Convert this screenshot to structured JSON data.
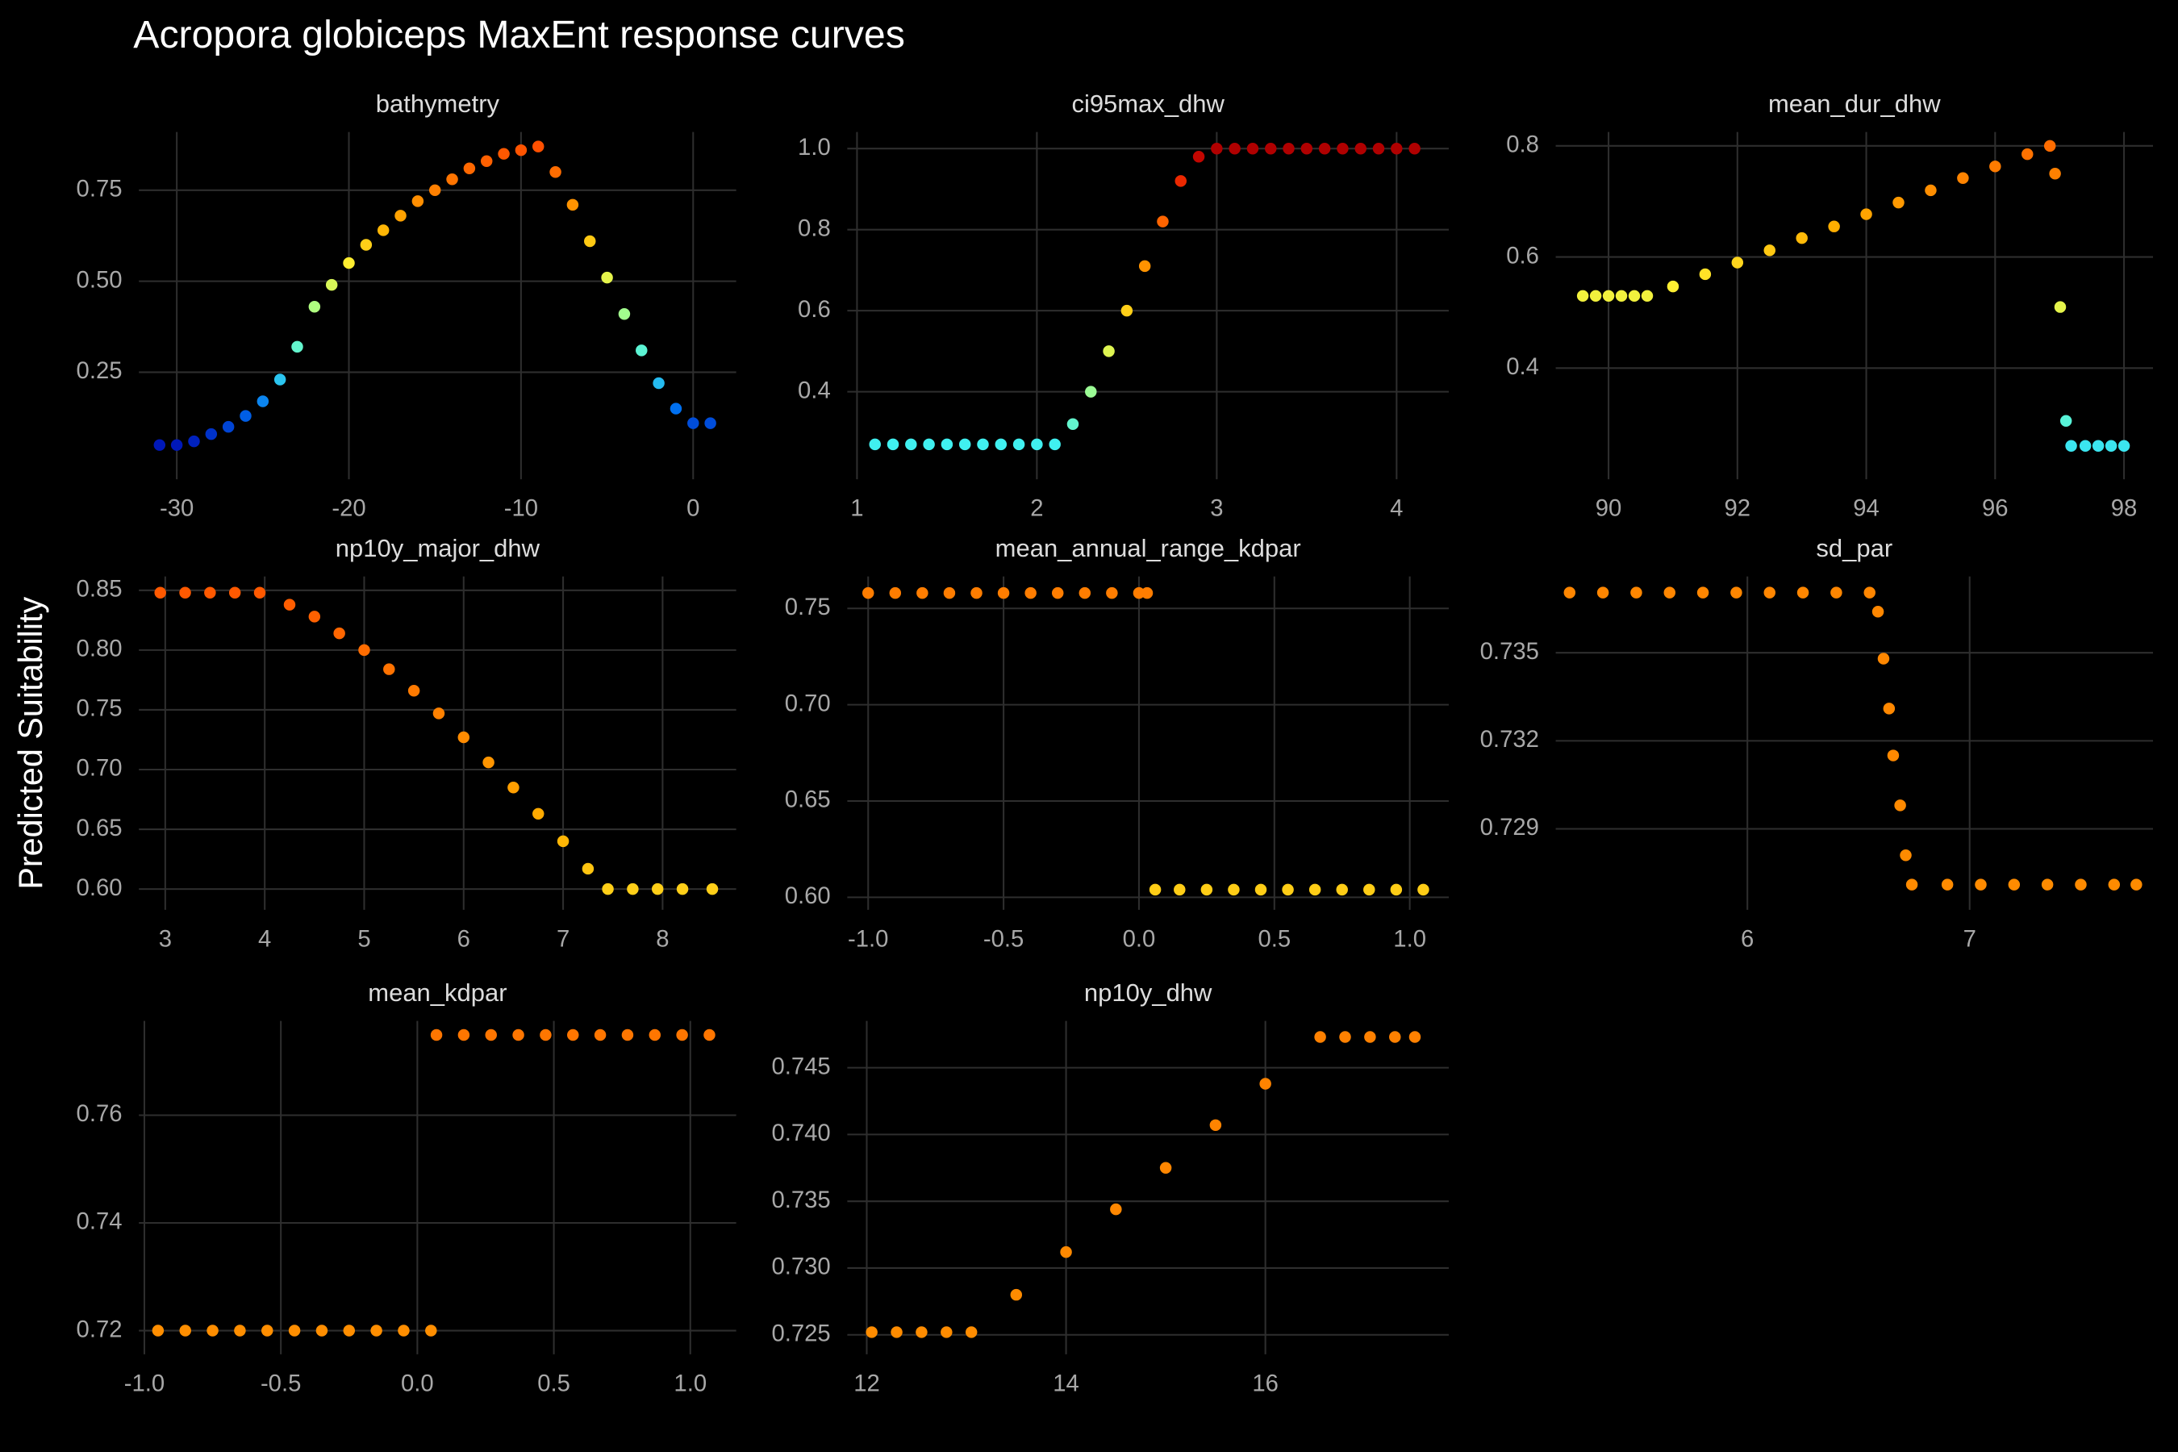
{
  "title": "Acropora globiceps MaxEnt response curves",
  "y_label": "Predicted Suitability",
  "color_scale": [
    {
      "value": 0.05,
      "color": "#0018b8"
    },
    {
      "value": 0.15,
      "color": "#0070f0"
    },
    {
      "value": 0.27,
      "color": "#40f0f0"
    },
    {
      "value": 0.43,
      "color": "#b0ff80"
    },
    {
      "value": 0.55,
      "color": "#ffee30"
    },
    {
      "value": 0.65,
      "color": "#ffb000"
    },
    {
      "value": 0.75,
      "color": "#ff8000"
    },
    {
      "value": 0.87,
      "color": "#ff5000"
    },
    {
      "value": 0.95,
      "color": "#e01000"
    },
    {
      "value": 1.0,
      "color": "#b00000"
    }
  ],
  "chart_data": [
    {
      "type": "scatter",
      "title": "bathymetry",
      "x": [
        -31,
        -30,
        -29,
        -28,
        -27,
        -26,
        -25,
        -24,
        -23,
        -22,
        -21,
        -20,
        -19,
        -18,
        -17,
        -16,
        -15,
        -14,
        -13,
        -12,
        -11,
        -10,
        -9,
        -8,
        -7,
        -6,
        -5,
        -4,
        -3,
        -2,
        -1,
        0,
        1
      ],
      "values": [
        0.05,
        0.05,
        0.06,
        0.08,
        0.1,
        0.13,
        0.17,
        0.23,
        0.32,
        0.43,
        0.49,
        0.55,
        0.6,
        0.64,
        0.68,
        0.72,
        0.75,
        0.78,
        0.81,
        0.83,
        0.85,
        0.86,
        0.87,
        0.8,
        0.71,
        0.61,
        0.51,
        0.41,
        0.31,
        0.22,
        0.15,
        0.11,
        0.11
      ],
      "xlim": [
        -32.2,
        2.5
      ],
      "ylim": [
        -0.044,
        0.91
      ],
      "xticks": [
        -30,
        -20,
        -10,
        0
      ],
      "yticks": [
        0.25,
        {
          "value": 0.5,
          "label": "0.50"
        },
        0.75
      ]
    },
    {
      "type": "scatter",
      "title": "ci95max_dhw",
      "x": [
        1.1,
        1.2,
        1.3,
        1.4,
        1.5,
        1.6,
        1.7,
        1.8,
        1.9,
        2.0,
        2.1,
        2.2,
        2.3,
        2.4,
        2.5,
        2.6,
        2.7,
        2.8,
        2.9,
        3.0,
        3.1,
        3.2,
        3.3,
        3.4,
        3.5,
        3.6,
        3.7,
        3.8,
        3.9,
        4.0,
        4.1
      ],
      "values": [
        0.27,
        0.27,
        0.27,
        0.27,
        0.27,
        0.27,
        0.27,
        0.27,
        0.27,
        0.27,
        0.27,
        0.32,
        0.4,
        0.5,
        0.6,
        0.71,
        0.82,
        0.92,
        0.98,
        1.0,
        1.0,
        1.0,
        1.0,
        1.0,
        1.0,
        1.0,
        1.0,
        1.0,
        1.0,
        1.0,
        1.0
      ],
      "xlim": [
        0.946,
        4.29
      ],
      "ylim": [
        0.184,
        1.041
      ],
      "xticks": [
        1,
        2,
        3,
        4
      ],
      "yticks": [
        0.4,
        0.6,
        0.8,
        {
          "value": 1.0,
          "label": "1.0"
        }
      ]
    },
    {
      "type": "scatter",
      "title": "mean_dur_dhw",
      "x": [
        89.6,
        89.8,
        90.0,
        90.2,
        90.4,
        90.6,
        91.0,
        91.5,
        92,
        92.5,
        93,
        93.5,
        94,
        94.5,
        95,
        95.5,
        96,
        96.5,
        96.85,
        96.93,
        97.01,
        97.1,
        97.18,
        97.4,
        97.6,
        97.8,
        98.0
      ],
      "values": [
        0.53,
        0.53,
        0.53,
        0.53,
        0.53,
        0.53,
        0.547,
        0.569,
        0.59,
        0.612,
        0.634,
        0.655,
        0.677,
        0.698,
        0.72,
        0.742,
        0.763,
        0.785,
        0.8,
        0.75,
        0.51,
        0.305,
        0.26,
        0.26,
        0.26,
        0.26,
        0.26
      ],
      "xlim": [
        89.18,
        98.45
      ],
      "ylim": [
        0.2,
        0.825
      ],
      "xticks": [
        90,
        92,
        94,
        96,
        98
      ],
      "yticks": [
        0.4,
        0.6,
        0.8
      ]
    },
    {
      "type": "scatter",
      "title": "np10y_major_dhw",
      "x": [
        2.95,
        3.2,
        3.45,
        3.7,
        3.95,
        4.25,
        4.5,
        4.75,
        5,
        5.25,
        5.5,
        5.75,
        6,
        6.25,
        6.5,
        6.75,
        7,
        7.25,
        7.45,
        7.7,
        7.95,
        8.2,
        8.5
      ],
      "values": [
        0.848,
        0.848,
        0.848,
        0.848,
        0.848,
        0.838,
        0.828,
        0.814,
        0.8,
        0.784,
        0.766,
        0.747,
        0.727,
        0.706,
        0.685,
        0.663,
        0.64,
        0.617,
        0.6,
        0.6,
        0.6,
        0.6,
        0.6
      ],
      "xlim": [
        2.735,
        8.74
      ],
      "ylim": [
        0.5826,
        0.8616
      ],
      "xticks": [
        3,
        4,
        5,
        6,
        7,
        8
      ],
      "yticks": [
        {
          "value": 0.6,
          "label": "0.60"
        },
        0.65,
        {
          "value": 0.7,
          "label": "0.70"
        },
        0.75,
        {
          "value": 0.8,
          "label": "0.80"
        },
        0.85
      ]
    },
    {
      "type": "scatter",
      "title": "mean_annual_range_kdpar",
      "x": [
        -1.0,
        -0.9,
        -0.8,
        -0.7,
        -0.6,
        -0.5,
        -0.4,
        -0.3,
        -0.2,
        -0.1,
        0.0,
        0.03,
        0.06,
        0.15,
        0.25,
        0.35,
        0.45,
        0.55,
        0.65,
        0.75,
        0.85,
        0.95,
        1.05
      ],
      "values": [
        0.758,
        0.758,
        0.758,
        0.758,
        0.758,
        0.758,
        0.758,
        0.758,
        0.758,
        0.758,
        0.758,
        0.758,
        0.604,
        0.604,
        0.604,
        0.604,
        0.604,
        0.604,
        0.604,
        0.604,
        0.604,
        0.604,
        0.604
      ],
      "xlim": [
        -1.077,
        1.144
      ],
      "ylim": [
        0.5935,
        0.7666
      ],
      "xticks": [
        {
          "value": -1.0,
          "label": "-1.0"
        },
        -0.5,
        {
          "value": 0,
          "label": "0.0"
        },
        0.5,
        {
          "value": 1.0,
          "label": "1.0"
        }
      ],
      "yticks": [
        {
          "value": 0.6,
          "label": "0.60"
        },
        0.65,
        {
          "value": 0.7,
          "label": "0.70"
        },
        0.75
      ]
    },
    {
      "type": "scatter",
      "title": "sd_par",
      "x": [
        5.2,
        5.35,
        5.5,
        5.65,
        5.8,
        5.95,
        6.1,
        6.25,
        6.4,
        6.55,
        6.5875,
        6.6125,
        6.6375,
        6.656,
        6.6875,
        6.7125,
        6.74,
        6.9,
        7.05,
        7.2,
        7.35,
        7.5,
        7.65,
        7.75
      ],
      "values": [
        0.73705,
        0.73705,
        0.73705,
        0.73705,
        0.73705,
        0.73705,
        0.73705,
        0.73705,
        0.73705,
        0.73705,
        0.7364,
        0.7348,
        0.7331,
        0.7315,
        0.7298,
        0.7281,
        0.7271,
        0.7271,
        0.7271,
        0.7271,
        0.7271,
        0.7271,
        0.7271,
        0.7271
      ],
      "xlim": [
        5.1375,
        7.825
      ],
      "ylim": [
        0.72624,
        0.7376
      ],
      "xticks": [
        6,
        7
      ],
      "yticks": [
        0.729,
        0.732,
        0.735
      ]
    },
    {
      "type": "scatter",
      "title": "mean_kdpar",
      "x": [
        -0.95,
        -0.85,
        -0.75,
        -0.65,
        -0.55,
        -0.45,
        -0.35,
        -0.25,
        -0.15,
        -0.05,
        0.05,
        0.07,
        0.17,
        0.27,
        0.37,
        0.47,
        0.57,
        0.67,
        0.77,
        0.87,
        0.97,
        1.07
      ],
      "values": [
        0.72,
        0.72,
        0.72,
        0.72,
        0.72,
        0.72,
        0.72,
        0.72,
        0.72,
        0.72,
        0.72,
        0.7749,
        0.7749,
        0.7749,
        0.7749,
        0.7749,
        0.7749,
        0.7749,
        0.7749,
        0.7749,
        0.7749,
        0.7749
      ],
      "xlim": [
        -1.02,
        1.168
      ],
      "ylim": [
        0.7156,
        0.7775
      ],
      "xticks": [
        {
          "value": -1.0,
          "label": "-1.0"
        },
        -0.5,
        {
          "value": 0,
          "label": "0.0"
        },
        0.5,
        {
          "value": 1.0,
          "label": "1.0"
        }
      ],
      "yticks": [
        0.72,
        0.74,
        0.76
      ]
    },
    {
      "type": "scatter",
      "title": "np10y_dhw",
      "x": [
        12.05,
        12.3,
        12.55,
        12.8,
        13.05,
        13.5,
        14,
        14.5,
        15,
        15.5,
        16,
        16.55,
        16.8,
        17.05,
        17.3,
        17.5
      ],
      "values": [
        0.7252,
        0.7252,
        0.7252,
        0.7252,
        0.7252,
        0.728,
        0.7312,
        0.7344,
        0.7375,
        0.7407,
        0.7438,
        0.7473,
        0.7473,
        0.7473,
        0.7473,
        0.7473
      ],
      "xlim": [
        11.805,
        17.84
      ],
      "ylim": [
        0.72354,
        0.7485
      ],
      "xticks": [
        12,
        14,
        16
      ],
      "yticks": [
        0.725,
        {
          "value": 0.73,
          "label": "0.730"
        },
        0.735,
        {
          "value": 0.74,
          "label": "0.740"
        },
        0.745
      ]
    }
  ]
}
